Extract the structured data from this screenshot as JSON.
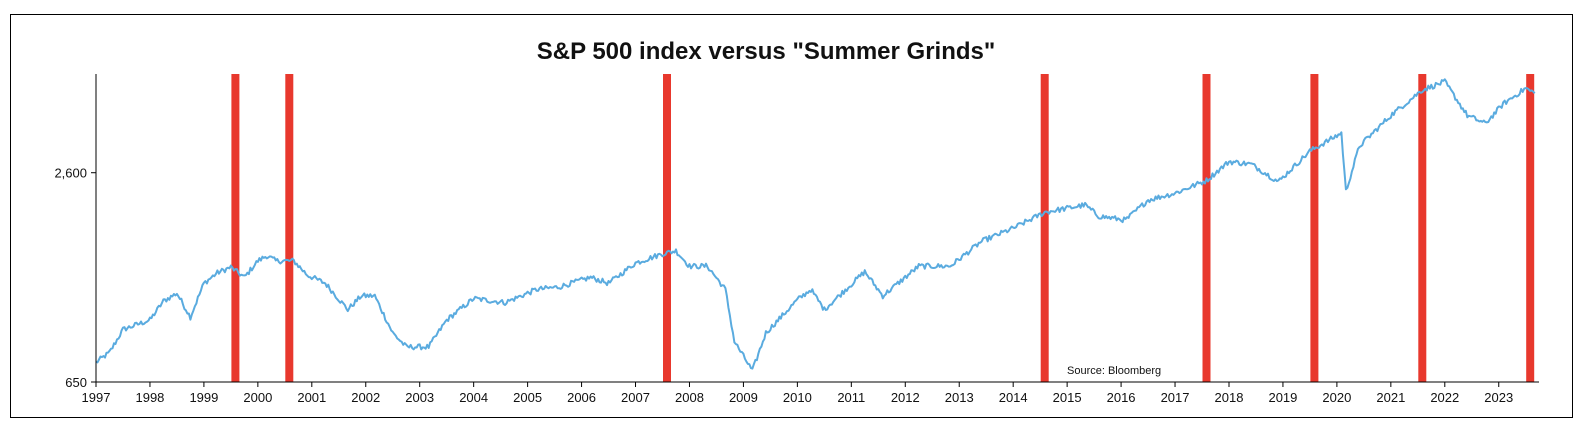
{
  "chart_data": {
    "type": "line",
    "title": "S&P 500 index versus \"Summer Grinds\"",
    "source_note": "Source: Bloomberg",
    "y_scale": "log",
    "ylim": [
      650,
      5000
    ],
    "xlim": [
      "1997-01-01",
      "2023-09-30"
    ],
    "y_ticks": [
      {
        "value": 650,
        "label": "650"
      },
      {
        "value": 2600,
        "label": "2,600"
      }
    ],
    "x_tick_labels": [
      "1997",
      "1998",
      "1999",
      "2000",
      "2001",
      "2002",
      "2003",
      "2004",
      "2005",
      "2006",
      "2007",
      "2008",
      "2009",
      "2010",
      "2011",
      "2012",
      "2013",
      "2014",
      "2015",
      "2016",
      "2017",
      "2018",
      "2019",
      "2020",
      "2021",
      "2022",
      "2023"
    ],
    "grid": false,
    "line_color": "#5aabdf",
    "highlight_color": "#e8382d",
    "highlight_periods": [
      "1999-08",
      "2000-08",
      "2007-08",
      "2014-08",
      "2017-08",
      "2019-08",
      "2021-08",
      "2023-08"
    ],
    "series": [
      {
        "x": [
          "1997-01",
          "1997-04",
          "1997-07",
          "1997-10",
          "1998-01",
          "1998-04",
          "1998-07",
          "1998-10",
          "1999-01",
          "1999-04",
          "1999-07",
          "1999-10",
          "2000-01",
          "2000-03",
          "2000-05",
          "2000-09",
          "2000-12",
          "2001-04",
          "2001-09",
          "2001-12",
          "2002-03",
          "2002-07",
          "2002-10",
          "2003-03",
          "2003-07",
          "2004-01",
          "2004-08",
          "2005-03",
          "2005-08",
          "2006-03",
          "2006-07",
          "2007-01",
          "2007-07",
          "2007-10",
          "2008-01",
          "2008-05",
          "2008-09",
          "2008-11",
          "2009-03",
          "2009-06",
          "2010-01",
          "2010-04",
          "2010-07",
          "2011-04",
          "2011-08",
          "2012-04",
          "2012-11",
          "2013-06",
          "2014-01",
          "2014-08",
          "2015-05",
          "2015-08",
          "2016-02",
          "2016-07",
          "2017-01",
          "2017-08",
          "2018-01",
          "2018-06",
          "2018-12",
          "2019-07",
          "2020-02",
          "2020-03",
          "2020-06",
          "2021-01",
          "2021-08",
          "2022-01",
          "2022-06",
          "2022-10",
          "2023-02",
          "2023-07",
          "2023-09"
        ],
        "values": [
          740,
          790,
          920,
          950,
          980,
          1110,
          1170,
          1000,
          1250,
          1340,
          1390,
          1300,
          1450,
          1500,
          1450,
          1450,
          1320,
          1250,
          1050,
          1150,
          1150,
          900,
          820,
          820,
          980,
          1130,
          1100,
          1200,
          1220,
          1300,
          1250,
          1430,
          1520,
          1550,
          1400,
          1400,
          1200,
          850,
          700,
          900,
          1120,
          1200,
          1050,
          1350,
          1150,
          1400,
          1400,
          1650,
          1800,
          2000,
          2100,
          1950,
          1900,
          2170,
          2270,
          2470,
          2800,
          2750,
          2450,
          3000,
          3380,
          2300,
          3100,
          3800,
          4500,
          4750,
          3800,
          3600,
          4100,
          4550,
          4400
        ]
      }
    ]
  }
}
